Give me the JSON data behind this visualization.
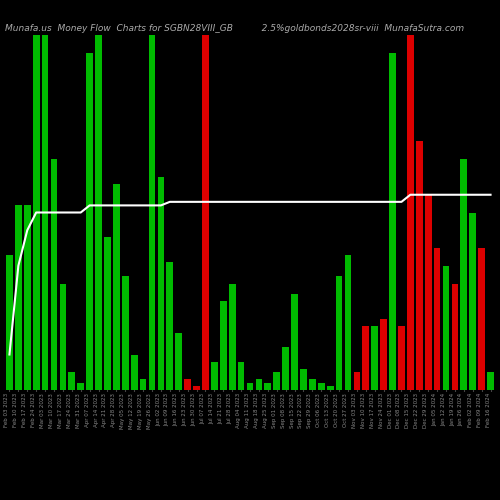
{
  "title_left": "Munafa.us  Money Flow  Charts for SGBN28VIII_GB",
  "title_right": "2.5%goldbonds2028sr-viii  MunafaSutra.com",
  "background_color": "#000000",
  "n_bars": 55,
  "values": [
    38,
    52,
    52,
    100,
    100,
    65,
    30,
    5,
    2,
    95,
    100,
    43,
    58,
    32,
    10,
    3,
    100,
    60,
    36,
    16,
    3,
    1,
    100,
    8,
    25,
    30,
    8,
    2,
    3,
    2,
    5,
    12,
    27,
    6,
    3,
    2,
    1,
    32,
    38,
    5,
    18,
    18,
    20,
    95,
    18,
    100,
    70,
    55,
    40,
    35,
    30,
    65,
    50,
    40,
    5
  ],
  "colors": [
    "green",
    "green",
    "green",
    "green",
    "green",
    "green",
    "green",
    "green",
    "green",
    "green",
    "green",
    "green",
    "green",
    "green",
    "green",
    "green",
    "green",
    "green",
    "green",
    "green",
    "red",
    "red",
    "red",
    "green",
    "green",
    "green",
    "green",
    "green",
    "green",
    "green",
    "green",
    "green",
    "green",
    "green",
    "green",
    "green",
    "green",
    "green",
    "green",
    "red",
    "red",
    "green",
    "red",
    "green",
    "red",
    "red",
    "red",
    "red",
    "red",
    "green",
    "red",
    "green",
    "green",
    "red",
    "green"
  ],
  "line_values": [
    10,
    35,
    45,
    50,
    50,
    50,
    50,
    50,
    50,
    52,
    52,
    52,
    52,
    52,
    52,
    52,
    52,
    52,
    53,
    53,
    53,
    53,
    53,
    53,
    53,
    53,
    53,
    53,
    53,
    53,
    53,
    53,
    53,
    53,
    53,
    53,
    53,
    53,
    53,
    53,
    53,
    53,
    53,
    53,
    53,
    55,
    55,
    55,
    55,
    55,
    55,
    55,
    55,
    55,
    55
  ],
  "dates": [
    "Feb 03 2023",
    "Feb 10 2023",
    "Feb 17 2023",
    "Feb 24 2023",
    "Mar 03 2023",
    "Mar 10 2023",
    "Mar 17 2023",
    "Mar 24 2023",
    "Mar 31 2023",
    "Apr 07 2023",
    "Apr 14 2023",
    "Apr 21 2023",
    "Apr 28 2023",
    "May 05 2023",
    "May 12 2023",
    "May 19 2023",
    "May 26 2023",
    "Jun 02 2023",
    "Jun 09 2023",
    "Jun 16 2023",
    "Jun 23 2023",
    "Jun 30 2023",
    "Jul 07 2023",
    "Jul 14 2023",
    "Jul 21 2023",
    "Jul 28 2023",
    "Aug 04 2023",
    "Aug 11 2023",
    "Aug 18 2023",
    "Aug 25 2023",
    "Sep 01 2023",
    "Sep 08 2023",
    "Sep 15 2023",
    "Sep 22 2023",
    "Sep 29 2023",
    "Oct 06 2023",
    "Oct 13 2023",
    "Oct 20 2023",
    "Oct 27 2023",
    "Nov 03 2023",
    "Nov 10 2023",
    "Nov 17 2023",
    "Nov 24 2023",
    "Dec 01 2023",
    "Dec 08 2023",
    "Dec 15 2023",
    "Dec 22 2023",
    "Dec 29 2023",
    "Jan 05 2024",
    "Jan 12 2024",
    "Jan 19 2024",
    "Jan 26 2024",
    "Feb 02 2024",
    "Feb 09 2024",
    "Feb 16 2024"
  ],
  "line_color": "#ffffff",
  "green_color": "#00bb00",
  "red_color": "#dd0000",
  "xlabel_fontsize": 4.0,
  "title_fontsize": 6.5,
  "ylim": [
    0,
    100
  ]
}
